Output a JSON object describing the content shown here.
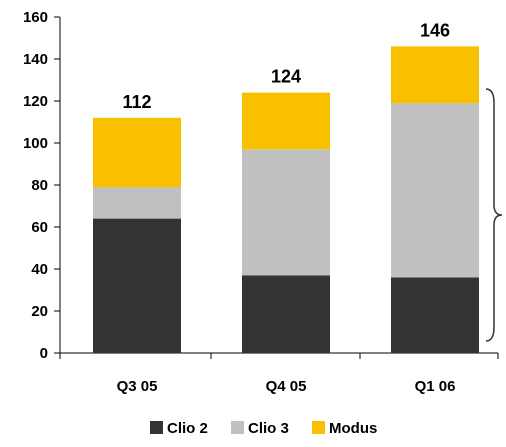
{
  "chart_data": {
    "type": "bar",
    "stacked": true,
    "categories": [
      "Q3 05",
      "Q4 05",
      "Q1 06"
    ],
    "series": [
      {
        "name": "Clio 2",
        "color": "#333333",
        "values": [
          64,
          37,
          36
        ]
      },
      {
        "name": "Clio 3",
        "color": "#c0c0c0",
        "values": [
          15,
          60,
          83
        ]
      },
      {
        "name": "Modus",
        "color": "#f9c000",
        "values": [
          33,
          27,
          27
        ]
      }
    ],
    "totals": [
      "112",
      "124",
      "146"
    ],
    "ylim": [
      0,
      160
    ],
    "yticks": [
      "0",
      "20",
      "40",
      "60",
      "80",
      "100",
      "120",
      "140",
      "160"
    ],
    "xlabel": "",
    "ylabel": "",
    "grid": false,
    "legend_position": "bottom",
    "annotation": "right curly brace spanning 0–120 beside Q1 06 bar"
  }
}
